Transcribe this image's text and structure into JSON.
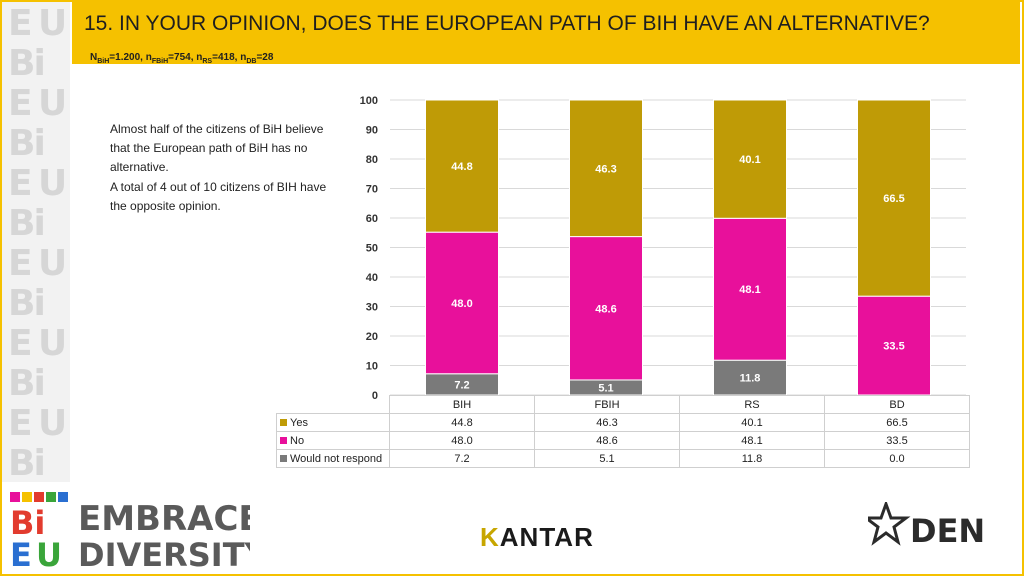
{
  "header": {
    "title": "15. IN YOUR OPINION, DOES THE EUROPEAN PATH OF BIH HAVE AN ALTERNATIVE?",
    "sample": {
      "n_letter": "N",
      "bih_sub": "BiH",
      "bih_val": "=1.200, n",
      "fbih_sub": "FBiH",
      "fbih_val": "=754, n",
      "rs_sub": "RS",
      "rs_val": "=418, n",
      "db_sub": "DB",
      "db_val": "=28"
    }
  },
  "note": {
    "line1": "Almost half of the citizens of BiH believe that the European path of BiH has no alternative.",
    "line2": "A total of 4 out of 10 citizens of BIH have the opposite opinion."
  },
  "chart_data": {
    "type": "bar",
    "stacked": true,
    "categories": [
      "BIH",
      "FBIH",
      "RS",
      "BD"
    ],
    "series": [
      {
        "name": "Would not respond",
        "values": [
          7.2,
          5.1,
          11.8,
          0.0
        ],
        "labels": [
          "7.2",
          "5.1",
          "11.8",
          "0.0"
        ],
        "color": "#7a7a7a"
      },
      {
        "name": "No",
        "values": [
          48.0,
          48.6,
          48.1,
          33.5
        ],
        "labels": [
          "48.0",
          "48.6",
          "48.1",
          "33.5"
        ],
        "color": "#e8109b"
      },
      {
        "name": "Yes",
        "values": [
          44.8,
          46.3,
          40.1,
          66.5
        ],
        "labels": [
          "44.8",
          "46.3",
          "40.1",
          "66.5"
        ],
        "color": "#bf9b06"
      }
    ],
    "yticks": [
      "0",
      "10",
      "20",
      "30",
      "40",
      "50",
      "60",
      "70",
      "80",
      "90",
      "100"
    ],
    "ylim": [
      0,
      100
    ],
    "legend_order": [
      "Yes",
      "No",
      "Would not respond"
    ],
    "grid": true
  },
  "logos": {
    "embrace_line1": "EMBRACE",
    "embrace_line2": "DIVERSITY",
    "bi": "Bi",
    "e": "E",
    "u": "U",
    "kantar_k": "K",
    "kantar_rest": "ANTAR",
    "den": "DEN"
  },
  "colors": {
    "accent": "#f5c100",
    "yes": "#bf9b06",
    "no": "#e8109b",
    "dnr": "#7a7a7a"
  }
}
